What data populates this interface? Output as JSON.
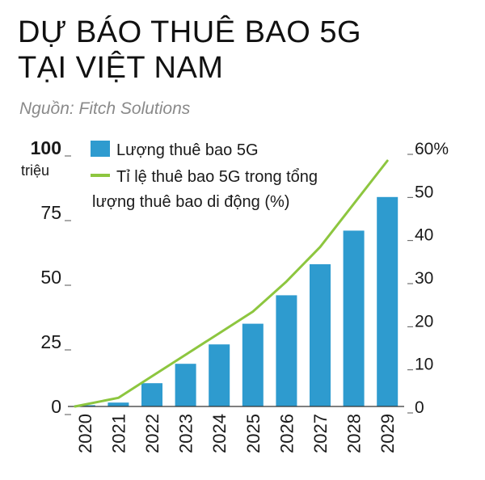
{
  "header": {
    "title_line1": "DỰ BÁO THUÊ BAO 5G",
    "title_line2": "TẠI VIỆT NAM",
    "source": "Nguồn: Fitch Solutions"
  },
  "chart_data": {
    "type": "bar",
    "categories": [
      "2020",
      "2021",
      "2022",
      "2023",
      "2024",
      "2025",
      "2026",
      "2027",
      "2028",
      "2029"
    ],
    "series": [
      {
        "name": "Lượng thuê bao 5G",
        "type": "bar",
        "axis": "left",
        "color": "#2e9bcf",
        "values": [
          0.5,
          1.5,
          9,
          16.5,
          24,
          32,
          43,
          55,
          68,
          81
        ]
      },
      {
        "name": "Tỉ lệ thuê bao 5G trong tổng lượng thuê bao di động (%)",
        "type": "line",
        "axis": "right",
        "color": "#8dc63f",
        "values": [
          0,
          2,
          7,
          12,
          17,
          22,
          29,
          37,
          47,
          57
        ]
      }
    ],
    "left_axis": {
      "ylim": [
        0,
        100
      ],
      "ticks": [
        0,
        25,
        50,
        75,
        100
      ],
      "tick_labels": [
        "0",
        "25",
        "50",
        "75",
        "100"
      ],
      "unit_label": "triệu"
    },
    "right_axis": {
      "ylim": [
        0,
        60
      ],
      "ticks": [
        0,
        10,
        20,
        30,
        40,
        50,
        60
      ],
      "tick_labels": [
        "0",
        "10",
        "20",
        "30",
        "40",
        "50",
        "60%"
      ]
    },
    "legend": {
      "position": "top-left",
      "bar_label": "Lượng thuê bao 5G",
      "line_label_line1": "Tỉ lệ thuê bao 5G trong tổng",
      "line_label_line2": "lượng thuê bao di động (%)"
    },
    "grid": false
  }
}
